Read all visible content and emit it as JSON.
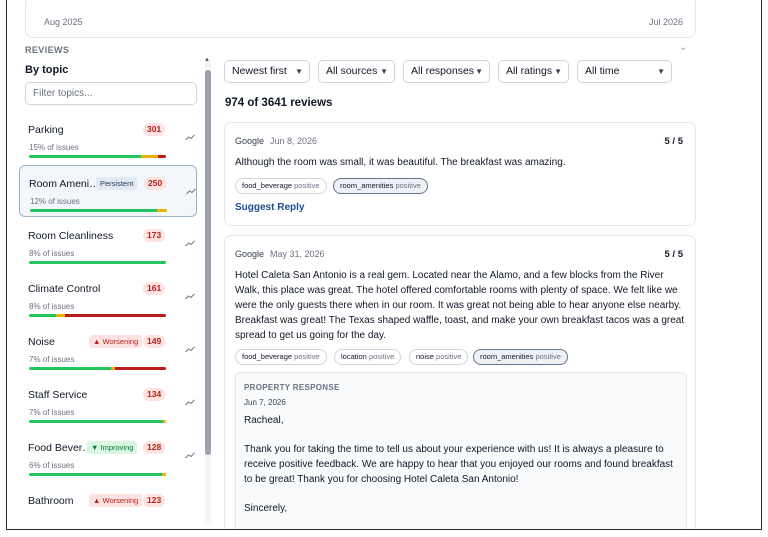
{
  "date_range": {
    "start": "Aug 2025",
    "end": "Jul 2026"
  },
  "section_title": "REVIEWS",
  "sidebar": {
    "heading": "By topic",
    "filter_placeholder": "Filter topics...",
    "topics": [
      {
        "name": "Parking",
        "count": "301",
        "issues": "15% of issues",
        "badge": "",
        "badge_type": "",
        "bar": [
          0.82,
          0.12,
          0.06
        ]
      },
      {
        "name": "Room Ameni…",
        "count": "250",
        "issues": "12% of issues",
        "badge": "Persistent",
        "badge_type": "persistent",
        "bar": [
          0.93,
          0.07,
          0.0
        ]
      },
      {
        "name": "Room Cleanliness",
        "count": "173",
        "issues": "8% of issues",
        "badge": "",
        "badge_type": "",
        "bar": [
          1.0,
          0.0,
          0.0
        ]
      },
      {
        "name": "Climate Control",
        "count": "161",
        "issues": "8% of issues",
        "badge": "",
        "badge_type": "",
        "bar": [
          0.2,
          0.06,
          0.74
        ]
      },
      {
        "name": "Noise",
        "count": "149",
        "issues": "7% of issues",
        "badge": "▲ Worsening",
        "badge_type": "worsening",
        "bar": [
          0.6,
          0.03,
          0.37
        ]
      },
      {
        "name": "Staff Service",
        "count": "134",
        "issues": "7% of issues",
        "badge": "",
        "badge_type": "",
        "bar": [
          0.98,
          0.02,
          0.0
        ]
      },
      {
        "name": "Food Bever…",
        "count": "128",
        "issues": "6% of issues",
        "badge": "▼ Improving",
        "badge_type": "improving",
        "bar": [
          0.97,
          0.03,
          0.0
        ]
      },
      {
        "name": "Bathroom",
        "count": "123",
        "issues": "",
        "badge": "▲ Worsening",
        "badge_type": "worsening",
        "bar": [
          0.0,
          0.0,
          0.0
        ]
      }
    ]
  },
  "filters": [
    {
      "label": "Newest first"
    },
    {
      "label": "All sources"
    },
    {
      "label": "All responses"
    },
    {
      "label": "All ratings"
    },
    {
      "label": "All time"
    }
  ],
  "review_count_text": "974 of 3641 reviews",
  "reviews": [
    {
      "source": "Google",
      "date": "Jun 8, 2026",
      "rating": "5 / 5",
      "text": "Although the room was small, it was beautiful. The breakfast was amazing.",
      "tags": [
        {
          "topic": "food_beverage",
          "sentiment": "positive",
          "active": false
        },
        {
          "topic": "room_amenities",
          "sentiment": "positive",
          "active": true
        }
      ],
      "action": "Suggest Reply"
    },
    {
      "source": "Google",
      "date": "May 31, 2026",
      "rating": "5 / 5",
      "text": "Hotel Caleta San Antonio is a real gem. Located near the Alamo, and a few blocks from the River Walk, this place was great. The hotel offered comfortable rooms with plenty of space. We felt like we were the only guests there when in our room. It was great not being able to hear anyone else nearby. Breakfast was great! The Texas shaped waffle, toast, and make your own breakfast tacos was a great spread to get us going for the day.",
      "tags": [
        {
          "topic": "food_beverage",
          "sentiment": "positive",
          "active": false
        },
        {
          "topic": "location",
          "sentiment": "positive",
          "active": false
        },
        {
          "topic": "noise",
          "sentiment": "positive",
          "active": false
        },
        {
          "topic": "room_amenities",
          "sentiment": "positive",
          "active": true
        }
      ],
      "response": {
        "heading": "PROPERTY RESPONSE",
        "date": "Jun 7, 2026",
        "greeting": "Racheal,",
        "body": "Thank you for taking the time to tell us about your experience with us! It is always a pleasure to receive positive feedback. We are happy to hear that you enjoyed our rooms and found breakfast to be great! Thank you for choosing Hotel Caleta San Antonio!",
        "closing": "Sincerely,"
      }
    }
  ],
  "colors": {
    "accent": "#1e4b8f",
    "positive": "#22c55e",
    "neutral": "#eab308",
    "negative": "#b91c1c"
  }
}
